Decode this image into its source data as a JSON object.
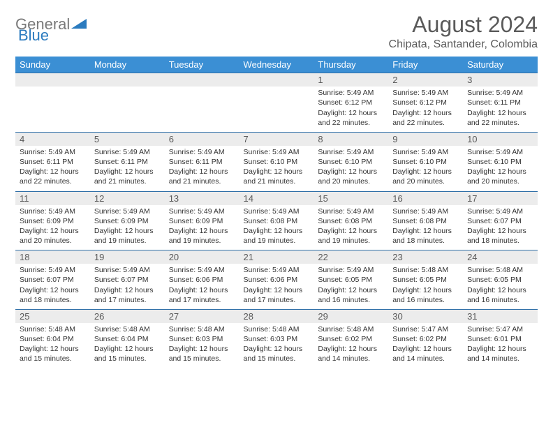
{
  "logo": {
    "word1": "General",
    "word2": "Blue"
  },
  "header": {
    "month_title": "August 2024",
    "location": "Chipata, Santander, Colombia"
  },
  "colors": {
    "header_bg": "#3b8fd4",
    "header_text": "#ffffff",
    "daynum_bg": "#ececec",
    "border_top": "#2f6fa8",
    "title_text": "#5a5a5a",
    "logo_gray": "#7a7a7a",
    "logo_blue": "#2b7bbf"
  },
  "daynames": [
    "Sunday",
    "Monday",
    "Tuesday",
    "Wednesday",
    "Thursday",
    "Friday",
    "Saturday"
  ],
  "weeks": [
    {
      "nums": [
        "",
        "",
        "",
        "",
        "1",
        "2",
        "3"
      ],
      "cells": [
        null,
        null,
        null,
        null,
        {
          "sr": "5:49 AM",
          "ss": "6:12 PM",
          "dl": "12 hours and 22 minutes."
        },
        {
          "sr": "5:49 AM",
          "ss": "6:12 PM",
          "dl": "12 hours and 22 minutes."
        },
        {
          "sr": "5:49 AM",
          "ss": "6:11 PM",
          "dl": "12 hours and 22 minutes."
        }
      ]
    },
    {
      "nums": [
        "4",
        "5",
        "6",
        "7",
        "8",
        "9",
        "10"
      ],
      "cells": [
        {
          "sr": "5:49 AM",
          "ss": "6:11 PM",
          "dl": "12 hours and 22 minutes."
        },
        {
          "sr": "5:49 AM",
          "ss": "6:11 PM",
          "dl": "12 hours and 21 minutes."
        },
        {
          "sr": "5:49 AM",
          "ss": "6:11 PM",
          "dl": "12 hours and 21 minutes."
        },
        {
          "sr": "5:49 AM",
          "ss": "6:10 PM",
          "dl": "12 hours and 21 minutes."
        },
        {
          "sr": "5:49 AM",
          "ss": "6:10 PM",
          "dl": "12 hours and 20 minutes."
        },
        {
          "sr": "5:49 AM",
          "ss": "6:10 PM",
          "dl": "12 hours and 20 minutes."
        },
        {
          "sr": "5:49 AM",
          "ss": "6:10 PM",
          "dl": "12 hours and 20 minutes."
        }
      ]
    },
    {
      "nums": [
        "11",
        "12",
        "13",
        "14",
        "15",
        "16",
        "17"
      ],
      "cells": [
        {
          "sr": "5:49 AM",
          "ss": "6:09 PM",
          "dl": "12 hours and 20 minutes."
        },
        {
          "sr": "5:49 AM",
          "ss": "6:09 PM",
          "dl": "12 hours and 19 minutes."
        },
        {
          "sr": "5:49 AM",
          "ss": "6:09 PM",
          "dl": "12 hours and 19 minutes."
        },
        {
          "sr": "5:49 AM",
          "ss": "6:08 PM",
          "dl": "12 hours and 19 minutes."
        },
        {
          "sr": "5:49 AM",
          "ss": "6:08 PM",
          "dl": "12 hours and 19 minutes."
        },
        {
          "sr": "5:49 AM",
          "ss": "6:08 PM",
          "dl": "12 hours and 18 minutes."
        },
        {
          "sr": "5:49 AM",
          "ss": "6:07 PM",
          "dl": "12 hours and 18 minutes."
        }
      ]
    },
    {
      "nums": [
        "18",
        "19",
        "20",
        "21",
        "22",
        "23",
        "24"
      ],
      "cells": [
        {
          "sr": "5:49 AM",
          "ss": "6:07 PM",
          "dl": "12 hours and 18 minutes."
        },
        {
          "sr": "5:49 AM",
          "ss": "6:07 PM",
          "dl": "12 hours and 17 minutes."
        },
        {
          "sr": "5:49 AM",
          "ss": "6:06 PM",
          "dl": "12 hours and 17 minutes."
        },
        {
          "sr": "5:49 AM",
          "ss": "6:06 PM",
          "dl": "12 hours and 17 minutes."
        },
        {
          "sr": "5:49 AM",
          "ss": "6:05 PM",
          "dl": "12 hours and 16 minutes."
        },
        {
          "sr": "5:48 AM",
          "ss": "6:05 PM",
          "dl": "12 hours and 16 minutes."
        },
        {
          "sr": "5:48 AM",
          "ss": "6:05 PM",
          "dl": "12 hours and 16 minutes."
        }
      ]
    },
    {
      "nums": [
        "25",
        "26",
        "27",
        "28",
        "29",
        "30",
        "31"
      ],
      "cells": [
        {
          "sr": "5:48 AM",
          "ss": "6:04 PM",
          "dl": "12 hours and 15 minutes."
        },
        {
          "sr": "5:48 AM",
          "ss": "6:04 PM",
          "dl": "12 hours and 15 minutes."
        },
        {
          "sr": "5:48 AM",
          "ss": "6:03 PM",
          "dl": "12 hours and 15 minutes."
        },
        {
          "sr": "5:48 AM",
          "ss": "6:03 PM",
          "dl": "12 hours and 15 minutes."
        },
        {
          "sr": "5:48 AM",
          "ss": "6:02 PM",
          "dl": "12 hours and 14 minutes."
        },
        {
          "sr": "5:47 AM",
          "ss": "6:02 PM",
          "dl": "12 hours and 14 minutes."
        },
        {
          "sr": "5:47 AM",
          "ss": "6:01 PM",
          "dl": "12 hours and 14 minutes."
        }
      ]
    }
  ],
  "labels": {
    "sunrise": "Sunrise:",
    "sunset": "Sunset:",
    "daylight": "Daylight:"
  }
}
